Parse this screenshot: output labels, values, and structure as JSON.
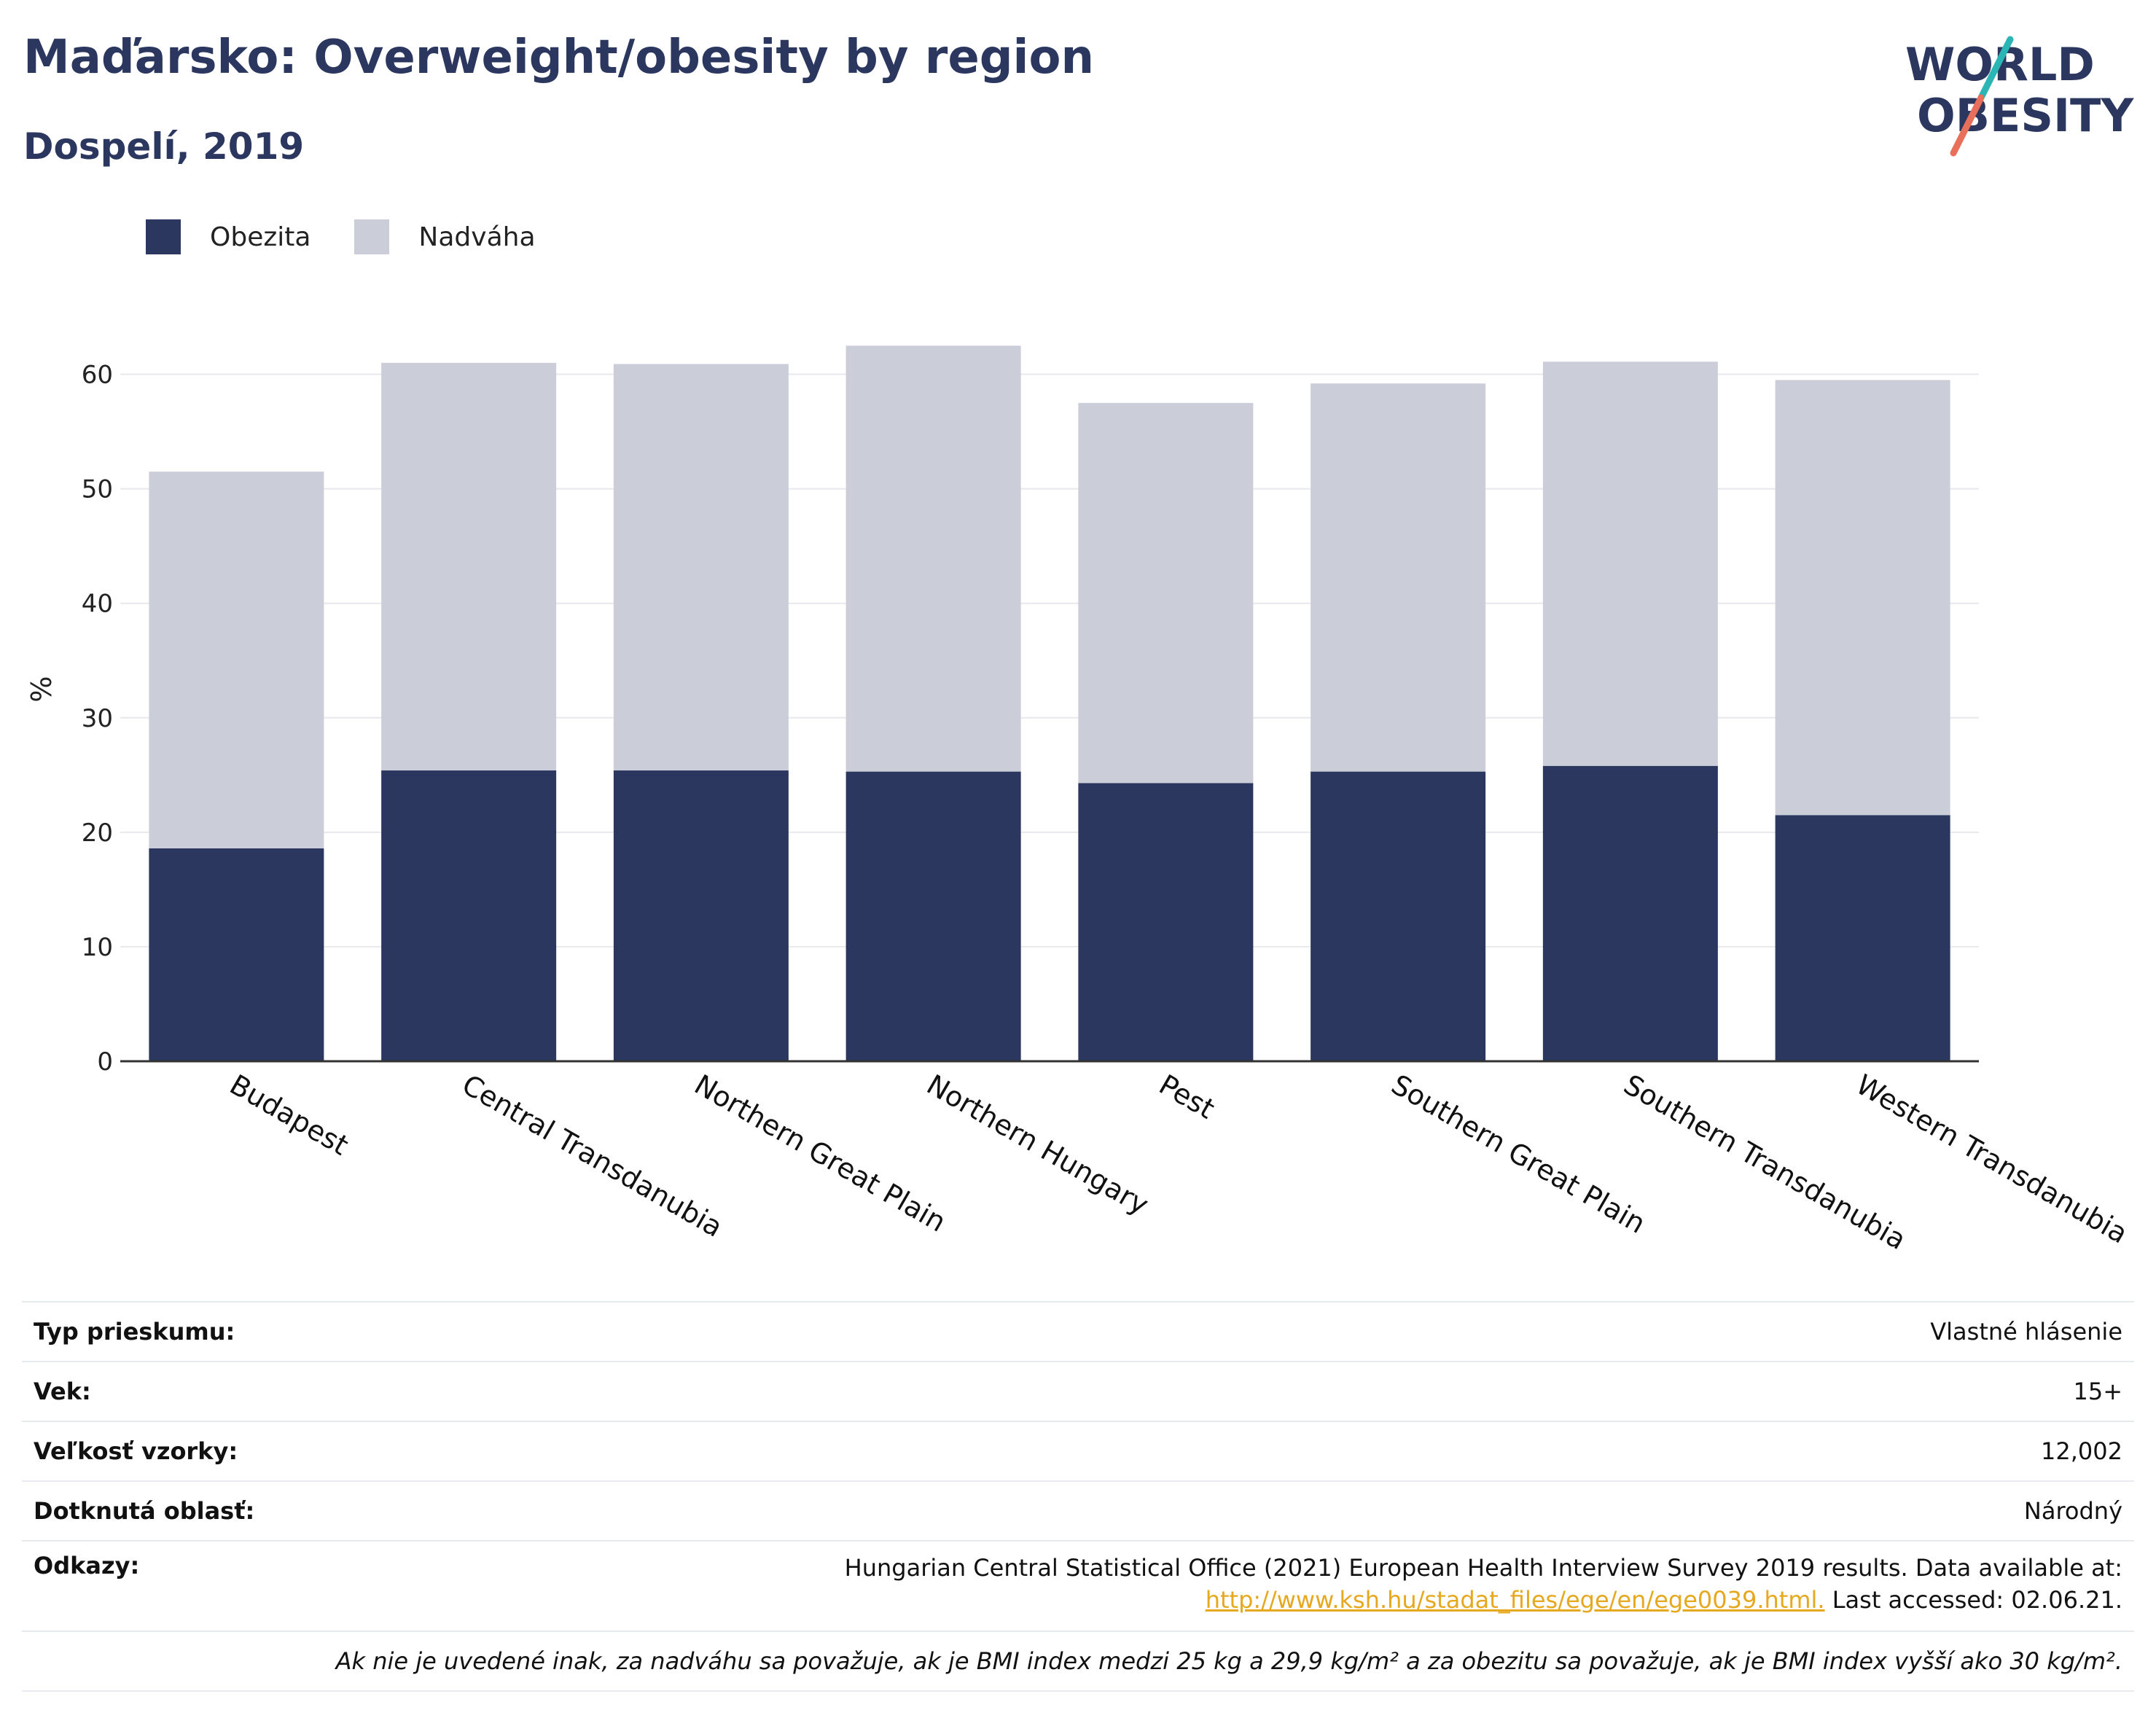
{
  "header": {
    "title": "Maďarsko: Overweight/obesity by region",
    "subtitle": "Dospelí, 2019"
  },
  "logo": {
    "line1": "WORLD",
    "line2": "OBESITY"
  },
  "colors": {
    "obesity": "#2b375f",
    "overweight": "#cbcdd8",
    "title": "#2b375f",
    "grid": "#e8e8ee",
    "axis": "#333333",
    "link": "#e6a81e",
    "logo_teal": "#2bb5b5",
    "logo_coral": "#e8705a"
  },
  "legend": {
    "obesity_label": "Obezita",
    "overweight_label": "Nadváha"
  },
  "chart_data": {
    "type": "bar",
    "stacked": true,
    "categories": [
      "Budapest",
      "Central Transdanubia",
      "Northern Great Plain",
      "Northern Hungary",
      "Pest",
      "Southern Great Plain",
      "Southern Transdanubia",
      "Western Transdanubia"
    ],
    "series": [
      {
        "name": "Obezita",
        "values": [
          18.6,
          25.4,
          25.4,
          25.3,
          24.3,
          25.3,
          25.8,
          21.5
        ]
      },
      {
        "name": "Nadváha",
        "values": [
          32.9,
          35.6,
          35.5,
          37.2,
          33.2,
          33.9,
          35.3,
          38.0
        ]
      }
    ],
    "ylabel": "%",
    "xlabel": "",
    "ylim": [
      0,
      65
    ],
    "yticks": [
      0,
      10,
      20,
      30,
      40,
      50,
      60
    ],
    "grid": true,
    "legend_position": "top-left"
  },
  "info": {
    "survey_type": {
      "label": "Typ prieskumu:",
      "value": "Vlastné hlásenie"
    },
    "age": {
      "label": "Vek:",
      "value": "15+"
    },
    "sample_size": {
      "label": "Veľkosť vzorky:",
      "value": "12,002"
    },
    "area": {
      "label": "Dotknutá oblasť:",
      "value": "Národný"
    },
    "references": {
      "label": "Odkazy:",
      "line1": "Hungarian Central Statistical Office (2021) European Health Interview Survey 2019 results. Data available at:",
      "link": "http://www.ksh.hu/stadat_files/ege/en/ege0039.html.",
      "line2_suffix": " Last accessed: 02.06.21."
    },
    "note": "Ak nie je uvedené inak, za nadváhu sa považuje, ak je BMI index medzi 25 kg a 29,9 kg/m² a za obezitu sa považuje, ak je BMI index vyšší ako 30 kg/m²."
  }
}
